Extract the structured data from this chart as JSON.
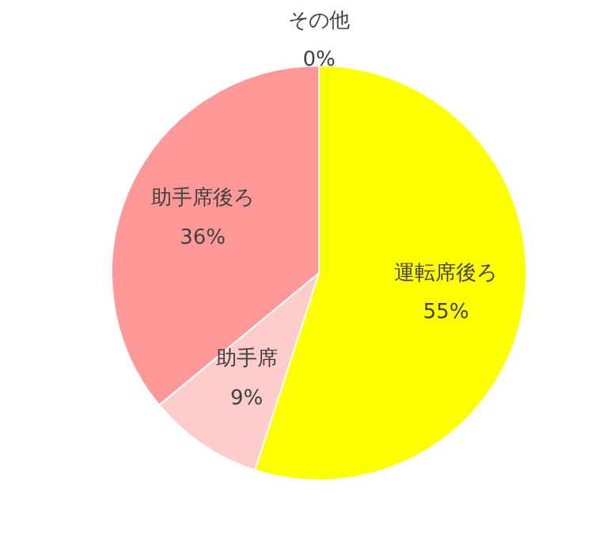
{
  "chart_data": {
    "type": "pie",
    "categories": [
      "運転席後ろ",
      "助手席",
      "助手席後ろ",
      "その他"
    ],
    "values": [
      55,
      9,
      36,
      0
    ],
    "value_labels": [
      "55%",
      "9%",
      "36%",
      "0%"
    ],
    "colors": [
      "#ffff00",
      "#ffcccc",
      "#ff9999",
      "#ff6666"
    ],
    "legend": false
  }
}
